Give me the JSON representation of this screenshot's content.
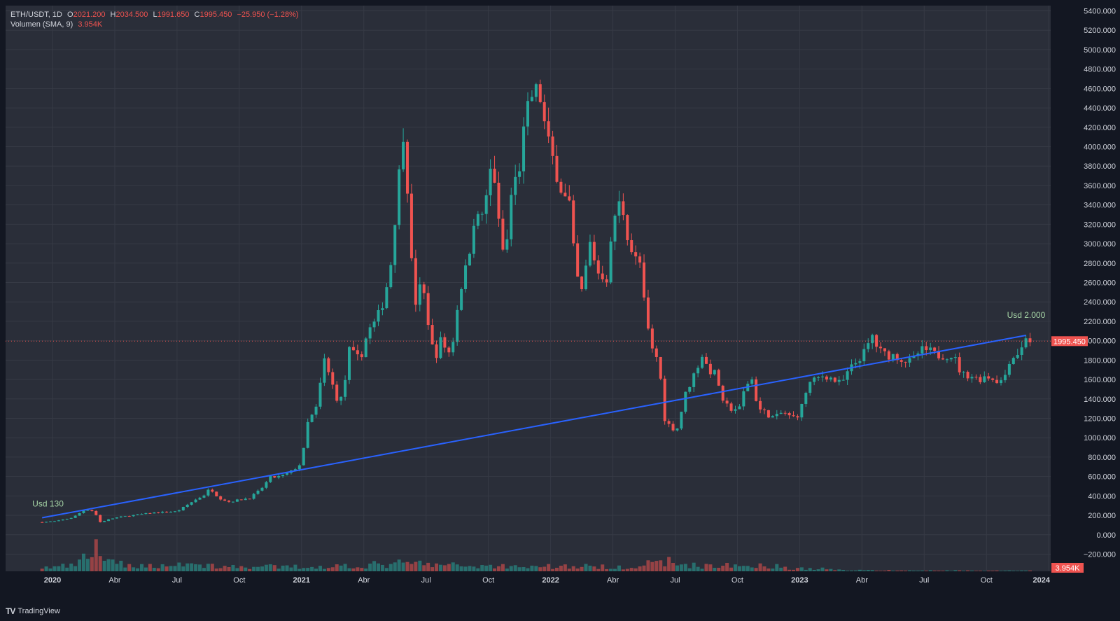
{
  "symbol": {
    "pair": "ETH/USDT",
    "interval": "1D",
    "open_label": "O",
    "open": "2021.200",
    "high_label": "H",
    "high": "2034.500",
    "low_label": "L",
    "low": "1991.650",
    "close_label": "C",
    "close": "1995.450",
    "change": "−25.950 (−1.28%)"
  },
  "volume_indicator": {
    "label": "Volumen (SMA, 9)",
    "value": "3.954K"
  },
  "colors": {
    "background": "#131722",
    "pane": "#2a2e39",
    "grid": "#363a45",
    "up": "#26a69a",
    "down": "#ef5350",
    "trendline": "#2962ff",
    "text": "#d1d4dc",
    "annotation": "#a6d5a6"
  },
  "branding": {
    "logo": "TV",
    "name": "TradingView"
  },
  "chart_data": {
    "type": "candlestick",
    "title": "ETH/USDT 1D",
    "xlabel": "",
    "ylabel": "",
    "ylim": [
      -350,
      5450
    ],
    "price_ticks": [
      "5400.000",
      "5200.000",
      "5000.000",
      "4800.000",
      "4600.000",
      "4400.000",
      "4200.000",
      "4000.000",
      "3800.000",
      "3600.000",
      "3400.000",
      "3200.000",
      "3000.000",
      "2800.000",
      "2600.000",
      "2400.000",
      "2200.000",
      "2000.000",
      "1800.000",
      "1600.000",
      "1400.000",
      "1200.000",
      "1000.000",
      "800.000",
      "600.000",
      "400.000",
      "200.000",
      "0.000",
      "−200.000"
    ],
    "tick_values": [
      5400,
      5200,
      5000,
      4800,
      4600,
      4400,
      4200,
      4000,
      3800,
      3600,
      3400,
      3200,
      3000,
      2800,
      2600,
      2400,
      2200,
      2000,
      1800,
      1600,
      1400,
      1200,
      1000,
      800,
      600,
      400,
      200,
      0,
      -200
    ],
    "time_ticks": [
      {
        "label": "2020",
        "m": 0,
        "major": true
      },
      {
        "label": "Abr",
        "m": 3,
        "major": false
      },
      {
        "label": "Jul",
        "m": 6,
        "major": false
      },
      {
        "label": "Oct",
        "m": 9,
        "major": false
      },
      {
        "label": "2021",
        "m": 12,
        "major": true
      },
      {
        "label": "Abr",
        "m": 15,
        "major": false
      },
      {
        "label": "Jul",
        "m": 18,
        "major": false
      },
      {
        "label": "Oct",
        "m": 21,
        "major": false
      },
      {
        "label": "2022",
        "m": 24,
        "major": true
      },
      {
        "label": "Abr",
        "m": 27,
        "major": false
      },
      {
        "label": "Jul",
        "m": 30,
        "major": false
      },
      {
        "label": "Oct",
        "m": 33,
        "major": false
      },
      {
        "label": "2023",
        "m": 36,
        "major": true
      },
      {
        "label": "Abr",
        "m": 39,
        "major": false
      },
      {
        "label": "Jul",
        "m": 42,
        "major": false
      },
      {
        "label": "Oct",
        "m": 45,
        "major": false
      },
      {
        "label": "2024",
        "m": 48,
        "major": true
      }
    ],
    "price_path": [
      [
        -0.5,
        130
      ],
      [
        0.2,
        140
      ],
      [
        1.0,
        180
      ],
      [
        1.6,
        265
      ],
      [
        2.0,
        240
      ],
      [
        2.3,
        130
      ],
      [
        2.6,
        150
      ],
      [
        3.0,
        175
      ],
      [
        4.0,
        205
      ],
      [
        5.0,
        230
      ],
      [
        6.0,
        240
      ],
      [
        6.8,
        350
      ],
      [
        7.3,
        410
      ],
      [
        7.6,
        480
      ],
      [
        8.0,
        380
      ],
      [
        8.5,
        340
      ],
      [
        9.0,
        360
      ],
      [
        9.5,
        380
      ],
      [
        10.0,
        460
      ],
      [
        10.5,
        590
      ],
      [
        11.0,
        600
      ],
      [
        11.5,
        650
      ],
      [
        12.0,
        740
      ],
      [
        12.3,
        1150
      ],
      [
        12.7,
        1300
      ],
      [
        13.1,
        1800
      ],
      [
        13.4,
        1600
      ],
      [
        13.8,
        1350
      ],
      [
        14.0,
        1450
      ],
      [
        14.3,
        1900
      ],
      [
        14.8,
        1800
      ],
      [
        15.2,
        2100
      ],
      [
        15.6,
        2200
      ],
      [
        16.0,
        2450
      ],
      [
        16.3,
        2800
      ],
      [
        16.6,
        3500
      ],
      [
        16.9,
        4150
      ],
      [
        17.1,
        3600
      ],
      [
        17.3,
        2800
      ],
      [
        17.5,
        2400
      ],
      [
        17.8,
        2600
      ],
      [
        18.1,
        2200
      ],
      [
        18.4,
        1800
      ],
      [
        18.7,
        2000
      ],
      [
        19.2,
        1850
      ],
      [
        19.6,
        2500
      ],
      [
        20.0,
        2800
      ],
      [
        20.3,
        3250
      ],
      [
        20.6,
        3250
      ],
      [
        20.9,
        3450
      ],
      [
        21.2,
        3900
      ],
      [
        21.5,
        3200
      ],
      [
        21.8,
        2800
      ],
      [
        22.1,
        3500
      ],
      [
        22.5,
        3800
      ],
      [
        22.8,
        4300
      ],
      [
        23.2,
        4600
      ],
      [
        23.5,
        4500
      ],
      [
        23.8,
        4100
      ],
      [
        24.2,
        3800
      ],
      [
        24.6,
        3500
      ],
      [
        24.9,
        3400
      ],
      [
        25.2,
        2700
      ],
      [
        25.5,
        2500
      ],
      [
        25.9,
        3000
      ],
      [
        26.3,
        2700
      ],
      [
        26.7,
        2650
      ],
      [
        27.1,
        3300
      ],
      [
        27.4,
        3450
      ],
      [
        27.7,
        3100
      ],
      [
        28.0,
        2850
      ],
      [
        28.3,
        2800
      ],
      [
        28.6,
        2200
      ],
      [
        28.9,
        1900
      ],
      [
        29.2,
        1800
      ],
      [
        29.5,
        1200
      ],
      [
        29.8,
        1100
      ],
      [
        30.1,
        1100
      ],
      [
        30.5,
        1450
      ],
      [
        30.9,
        1650
      ],
      [
        31.3,
        1850
      ],
      [
        31.6,
        1700
      ],
      [
        32.0,
        1650
      ],
      [
        32.3,
        1350
      ],
      [
        32.7,
        1300
      ],
      [
        33.1,
        1300
      ],
      [
        33.4,
        1550
      ],
      [
        33.7,
        1600
      ],
      [
        34.0,
        1300
      ],
      [
        34.4,
        1250
      ],
      [
        34.8,
        1200
      ],
      [
        35.2,
        1270
      ],
      [
        35.6,
        1200
      ],
      [
        36.0,
        1250
      ],
      [
        36.4,
        1550
      ],
      [
        36.8,
        1600
      ],
      [
        37.2,
        1650
      ],
      [
        37.6,
        1600
      ],
      [
        38.0,
        1550
      ],
      [
        38.4,
        1700
      ],
      [
        38.8,
        1800
      ],
      [
        39.2,
        1900
      ],
      [
        39.5,
        2050
      ],
      [
        39.8,
        1900
      ],
      [
        40.2,
        1850
      ],
      [
        40.6,
        1850
      ],
      [
        41.0,
        1800
      ],
      [
        41.4,
        1780
      ],
      [
        41.8,
        1900
      ],
      [
        42.2,
        1900
      ],
      [
        42.6,
        1850
      ],
      [
        43.0,
        1850
      ],
      [
        43.4,
        1850
      ],
      [
        43.8,
        1650
      ],
      [
        44.2,
        1650
      ],
      [
        44.6,
        1600
      ],
      [
        45.0,
        1640
      ],
      [
        45.4,
        1600
      ],
      [
        45.8,
        1580
      ],
      [
        46.1,
        1800
      ],
      [
        46.4,
        1850
      ],
      [
        46.7,
        1920
      ],
      [
        46.9,
        2050
      ],
      [
        47.1,
        1995
      ]
    ],
    "volume_profile": [
      [
        -0.5,
        0.12
      ],
      [
        1.0,
        0.18
      ],
      [
        1.9,
        0.6
      ],
      [
        2.1,
        0.95
      ],
      [
        2.3,
        0.55
      ],
      [
        2.8,
        0.3
      ],
      [
        3.5,
        0.2
      ],
      [
        5.0,
        0.18
      ],
      [
        6.0,
        0.22
      ],
      [
        6.5,
        0.3
      ],
      [
        7.0,
        0.2
      ],
      [
        8.0,
        0.18
      ],
      [
        9.0,
        0.15
      ],
      [
        11.0,
        0.14
      ],
      [
        12.5,
        0.15
      ],
      [
        15.0,
        0.2
      ],
      [
        16.5,
        0.25
      ],
      [
        17.4,
        0.28
      ],
      [
        18.0,
        0.22
      ],
      [
        21.0,
        0.18
      ],
      [
        24.0,
        0.16
      ],
      [
        26.0,
        0.15
      ],
      [
        28.0,
        0.15
      ],
      [
        29.6,
        0.32
      ],
      [
        30.0,
        0.25
      ],
      [
        31.0,
        0.2
      ],
      [
        33.0,
        0.18
      ],
      [
        34.0,
        0.22
      ],
      [
        35.0,
        0.15
      ],
      [
        36.0,
        0.1
      ],
      [
        37.0,
        0.08
      ],
      [
        38.0,
        0.05
      ],
      [
        40.0,
        0.03
      ],
      [
        45.0,
        0.02
      ],
      [
        47.1,
        0.02
      ]
    ],
    "volume_ylim": [
      0,
      11
    ],
    "last_price": 1995.45,
    "last_price_label": "1995.450",
    "last_volume_label": "3.954K",
    "trendline": {
      "start": {
        "month": -0.5,
        "price": 175
      },
      "end": {
        "month": 46.9,
        "price": 2055
      },
      "start_label": "Usd 130",
      "end_label": "Usd 2.000"
    }
  }
}
